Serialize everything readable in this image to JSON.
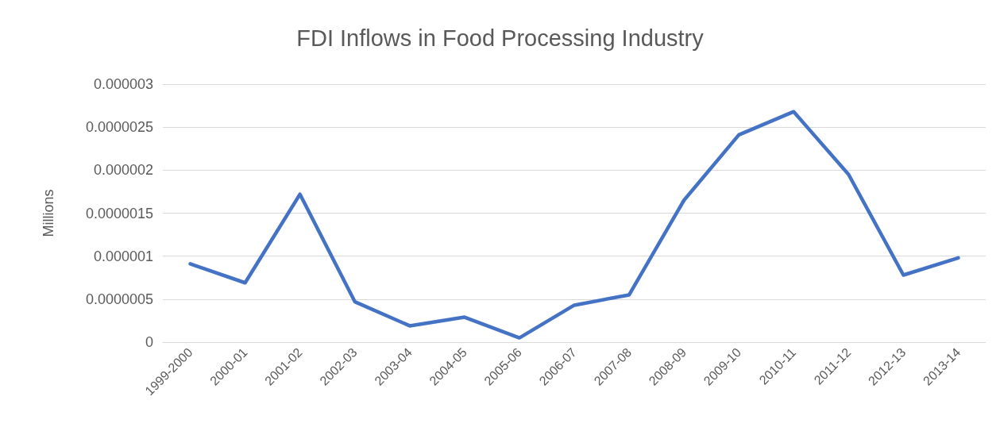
{
  "chart_data": {
    "type": "line",
    "title": "FDI Inflows in Food Processing Industry",
    "ylabel": "Millions",
    "categories": [
      "1999-2000",
      "2000-01",
      "2001-02",
      "2002-03",
      "2003-04",
      "2004-05",
      "2005-06",
      "2006-07",
      "2007-08",
      "2008-09",
      "2009-10",
      "2010-11",
      "2011-12",
      "2012-13",
      "2013-14"
    ],
    "series": [
      {
        "color": "#4472c4",
        "values": [
          9.1e-07,
          6.9e-07,
          1.72e-06,
          4.7e-07,
          1.9e-07,
          2.9e-07,
          5e-08,
          4.3e-07,
          5.5e-07,
          1.65e-06,
          2.41e-06,
          2.68e-06,
          1.95e-06,
          7.8e-07,
          9.8e-07
        ]
      }
    ],
    "ylim": [
      0,
      3e-06
    ],
    "yticks": [
      {
        "value": 0,
        "label": "0"
      },
      {
        "value": 5e-07,
        "label": "0.0000005"
      },
      {
        "value": 1e-06,
        "label": "0.000001"
      },
      {
        "value": 1.5e-06,
        "label": "0.0000015"
      },
      {
        "value": 2e-06,
        "label": "0.000002"
      },
      {
        "value": 2.5e-06,
        "label": "0.0000025"
      },
      {
        "value": 3e-06,
        "label": "0.000003"
      }
    ],
    "grid": "y",
    "marker": "none",
    "line_style": "solid"
  }
}
